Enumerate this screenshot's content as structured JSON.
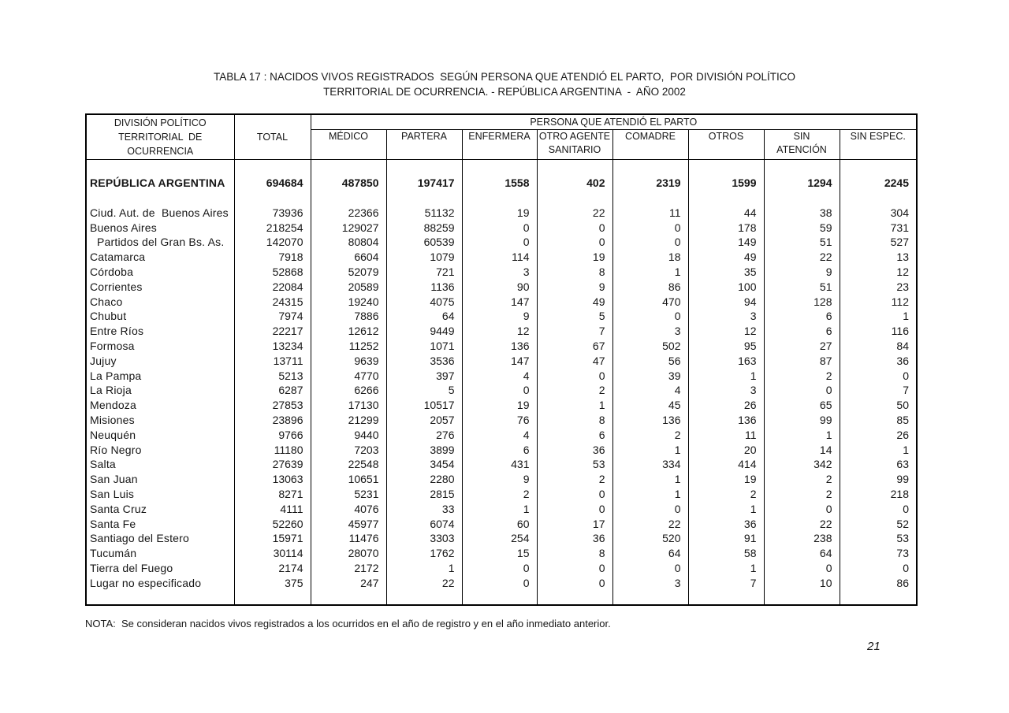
{
  "title": {
    "line1": "TABLA 17 : NACIDOS VIVOS REGISTRADOS  SEGÚN PERSONA QUE ATENDIÓ EL PARTO,  POR DIVISIÓN POLÍTICO",
    "line2": "TERRITORIAL DE OCURRENCIA. - REPÚBLICA ARGENTINA  -  AÑO 2002"
  },
  "table": {
    "corner_header": "DIVISIÓN POLÍTICO\nTERRITORIAL  DE\nOCURRENCIA",
    "total_header": "TOTAL",
    "group_header": "PERSONA QUE ATENDIÓ EL PARTO",
    "sub_headers": [
      "MÉDICO",
      "PARTERA",
      "ENFERMERA",
      "OTRO AGENTE\nSANITARIO",
      "COMADRE",
      "OTROS",
      "SIN\nATENCIÓN",
      "SIN ESPEC."
    ],
    "rows": [
      {
        "label": "REPÚBLICA ARGENTINA",
        "bold": true,
        "indent": false,
        "values": [
          694684,
          487850,
          197417,
          1558,
          402,
          2319,
          1599,
          1294,
          2245
        ]
      },
      {
        "label": "Ciud. Aut. de  Buenos Aires",
        "bold": false,
        "indent": false,
        "values": [
          73936,
          22366,
          51132,
          19,
          22,
          11,
          44,
          38,
          304
        ]
      },
      {
        "label": "Buenos Aires",
        "bold": false,
        "indent": false,
        "values": [
          218254,
          129027,
          88259,
          0,
          0,
          0,
          178,
          59,
          731
        ]
      },
      {
        "label": "Partidos del Gran Bs. As.",
        "bold": false,
        "indent": true,
        "values": [
          142070,
          80804,
          60539,
          0,
          0,
          0,
          149,
          51,
          527
        ]
      },
      {
        "label": "Catamarca",
        "bold": false,
        "indent": false,
        "values": [
          7918,
          6604,
          1079,
          114,
          19,
          18,
          49,
          22,
          13
        ]
      },
      {
        "label": "Córdoba",
        "bold": false,
        "indent": false,
        "values": [
          52868,
          52079,
          721,
          3,
          8,
          1,
          35,
          9,
          12
        ]
      },
      {
        "label": "Corrientes",
        "bold": false,
        "indent": false,
        "values": [
          22084,
          20589,
          1136,
          90,
          9,
          86,
          100,
          51,
          23
        ]
      },
      {
        "label": "Chaco",
        "bold": false,
        "indent": false,
        "values": [
          24315,
          19240,
          4075,
          147,
          49,
          470,
          94,
          128,
          112
        ]
      },
      {
        "label": "Chubut",
        "bold": false,
        "indent": false,
        "values": [
          7974,
          7886,
          64,
          9,
          5,
          0,
          3,
          6,
          1
        ]
      },
      {
        "label": "Entre Ríos",
        "bold": false,
        "indent": false,
        "values": [
          22217,
          12612,
          9449,
          12,
          7,
          3,
          12,
          6,
          116
        ]
      },
      {
        "label": "Formosa",
        "bold": false,
        "indent": false,
        "values": [
          13234,
          11252,
          1071,
          136,
          67,
          502,
          95,
          27,
          84
        ]
      },
      {
        "label": "Jujuy",
        "bold": false,
        "indent": false,
        "values": [
          13711,
          9639,
          3536,
          147,
          47,
          56,
          163,
          87,
          36
        ]
      },
      {
        "label": "La Pampa",
        "bold": false,
        "indent": false,
        "values": [
          5213,
          4770,
          397,
          4,
          0,
          39,
          1,
          2,
          0
        ]
      },
      {
        "label": "La Rioja",
        "bold": false,
        "indent": false,
        "values": [
          6287,
          6266,
          5,
          0,
          2,
          4,
          3,
          0,
          7
        ]
      },
      {
        "label": "Mendoza",
        "bold": false,
        "indent": false,
        "values": [
          27853,
          17130,
          10517,
          19,
          1,
          45,
          26,
          65,
          50
        ]
      },
      {
        "label": "Misiones",
        "bold": false,
        "indent": false,
        "values": [
          23896,
          21299,
          2057,
          76,
          8,
          136,
          136,
          99,
          85
        ]
      },
      {
        "label": "Neuquén",
        "bold": false,
        "indent": false,
        "values": [
          9766,
          9440,
          276,
          4,
          6,
          2,
          11,
          1,
          26
        ]
      },
      {
        "label": "Río Negro",
        "bold": false,
        "indent": false,
        "values": [
          11180,
          7203,
          3899,
          6,
          36,
          1,
          20,
          14,
          1
        ]
      },
      {
        "label": "Salta",
        "bold": false,
        "indent": false,
        "values": [
          27639,
          22548,
          3454,
          431,
          53,
          334,
          414,
          342,
          63
        ]
      },
      {
        "label": "San Juan",
        "bold": false,
        "indent": false,
        "values": [
          13063,
          10651,
          2280,
          9,
          2,
          1,
          19,
          2,
          99
        ]
      },
      {
        "label": "San Luis",
        "bold": false,
        "indent": false,
        "values": [
          8271,
          5231,
          2815,
          2,
          0,
          1,
          2,
          2,
          218
        ]
      },
      {
        "label": "Santa Cruz",
        "bold": false,
        "indent": false,
        "values": [
          4111,
          4076,
          33,
          1,
          0,
          0,
          1,
          0,
          0
        ]
      },
      {
        "label": "Santa Fe",
        "bold": false,
        "indent": false,
        "values": [
          52260,
          45977,
          6074,
          60,
          17,
          22,
          36,
          22,
          52
        ]
      },
      {
        "label": "Santiago del Estero",
        "bold": false,
        "indent": false,
        "values": [
          15971,
          11476,
          3303,
          254,
          36,
          520,
          91,
          238,
          53
        ]
      },
      {
        "label": "Tucumán",
        "bold": false,
        "indent": false,
        "values": [
          30114,
          28070,
          1762,
          15,
          8,
          64,
          58,
          64,
          73
        ]
      },
      {
        "label": "Tierra del Fuego",
        "bold": false,
        "indent": false,
        "values": [
          2174,
          2172,
          1,
          0,
          0,
          0,
          1,
          0,
          0
        ]
      },
      {
        "label": "Lugar no especificado",
        "bold": false,
        "indent": false,
        "values": [
          375,
          247,
          22,
          0,
          0,
          3,
          7,
          10,
          86
        ]
      }
    ]
  },
  "note": "NOTA:  Se consideran nacidos vivos registrados a los ocurridos en el año de registro y en el año inmediato anterior.",
  "page": {
    "number": "21"
  }
}
